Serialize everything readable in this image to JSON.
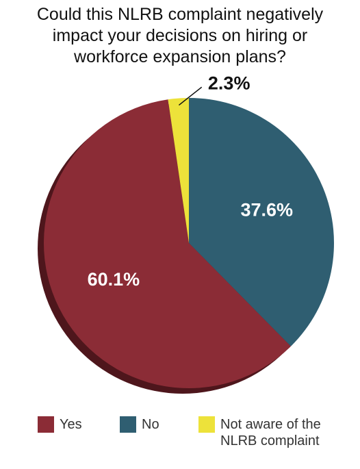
{
  "chart_data": {
    "type": "pie",
    "title": "Could this NLRB complaint negatively impact your decisions on hiring or workforce expansion plans?",
    "categories": [
      "Yes",
      "No",
      "Not aware of the NLRB complaint"
    ],
    "values": [
      60.1,
      37.6,
      2.3
    ],
    "value_labels": [
      "60.1%",
      "37.6%",
      "2.3%"
    ],
    "colors": [
      "#8b2c36",
      "#2f5e71",
      "#ede23a"
    ]
  }
}
